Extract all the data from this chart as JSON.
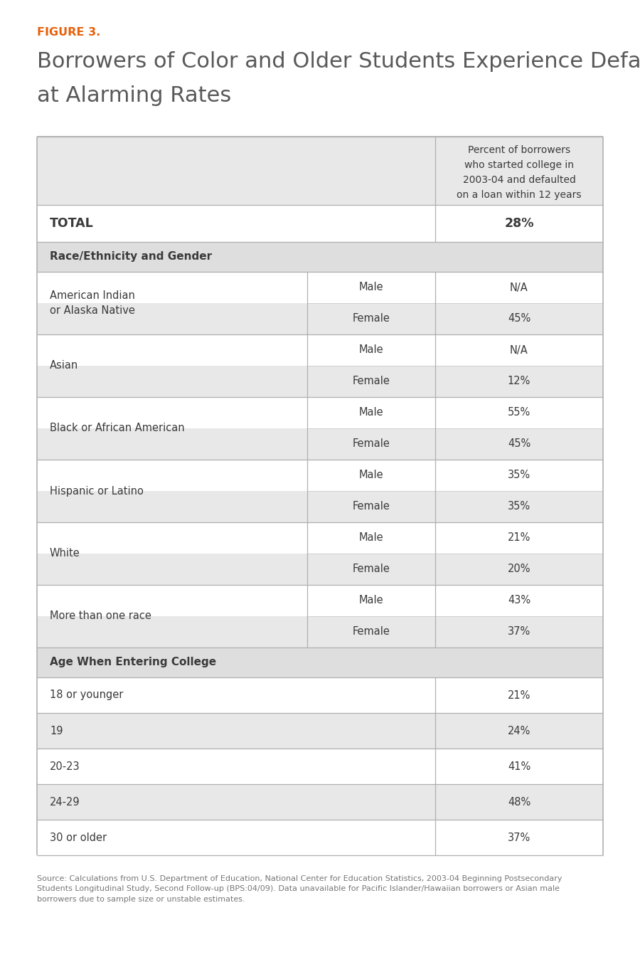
{
  "figure_label": "FIGURE 3.",
  "title_line1": "Borrowers of Color and Older Students Experience Default",
  "title_line2": "at Alarming Rates",
  "figure_label_color": "#E8600A",
  "title_color": "#595959",
  "bg_color": "#FFFFFF",
  "table_bg_light": "#E8E8E8",
  "table_bg_white": "#FFFFFF",
  "table_bg_header": "#DEDEDE",
  "text_color_dark": "#3A3A3A",
  "col_header_text": "Percent of borrowers\nwho started college in\n2003-04 and defaulted\non a loan within 12 years",
  "total_label": "TOTAL",
  "total_value": "28%",
  "section1_header": "Race/Ethnicity and Gender",
  "section2_header": "Age When Entering College",
  "race_groups": [
    {
      "group": "American Indian\nor Alaska Native",
      "rows": [
        [
          "Male",
          "N/A"
        ],
        [
          "Female",
          "45%"
        ]
      ]
    },
    {
      "group": "Asian",
      "rows": [
        [
          "Male",
          "N/A"
        ],
        [
          "Female",
          "12%"
        ]
      ]
    },
    {
      "group": "Black or African American",
      "rows": [
        [
          "Male",
          "55%"
        ],
        [
          "Female",
          "45%"
        ]
      ]
    },
    {
      "group": "Hispanic or Latino",
      "rows": [
        [
          "Male",
          "35%"
        ],
        [
          "Female",
          "35%"
        ]
      ]
    },
    {
      "group": "White",
      "rows": [
        [
          "Male",
          "21%"
        ],
        [
          "Female",
          "20%"
        ]
      ]
    },
    {
      "group": "More than one race",
      "rows": [
        [
          "Male",
          "43%"
        ],
        [
          "Female",
          "37%"
        ]
      ]
    }
  ],
  "age_rows": [
    [
      "18 or younger",
      "21%"
    ],
    [
      "19",
      "24%"
    ],
    [
      "20-23",
      "41%"
    ],
    [
      "24-29",
      "48%"
    ],
    [
      "30 or older",
      "37%"
    ]
  ],
  "source_text": "Source: Calculations from U.S. Department of Education, National Center for Education Statistics, 2003-04 Beginning Postsecondary\nStudents Longitudinal Study, Second Follow-up (BPS:04/09). Data unavailable for Pacific Islander/Hawaiian borrowers or Asian male\nborrowers due to sample size or unstable estimates."
}
